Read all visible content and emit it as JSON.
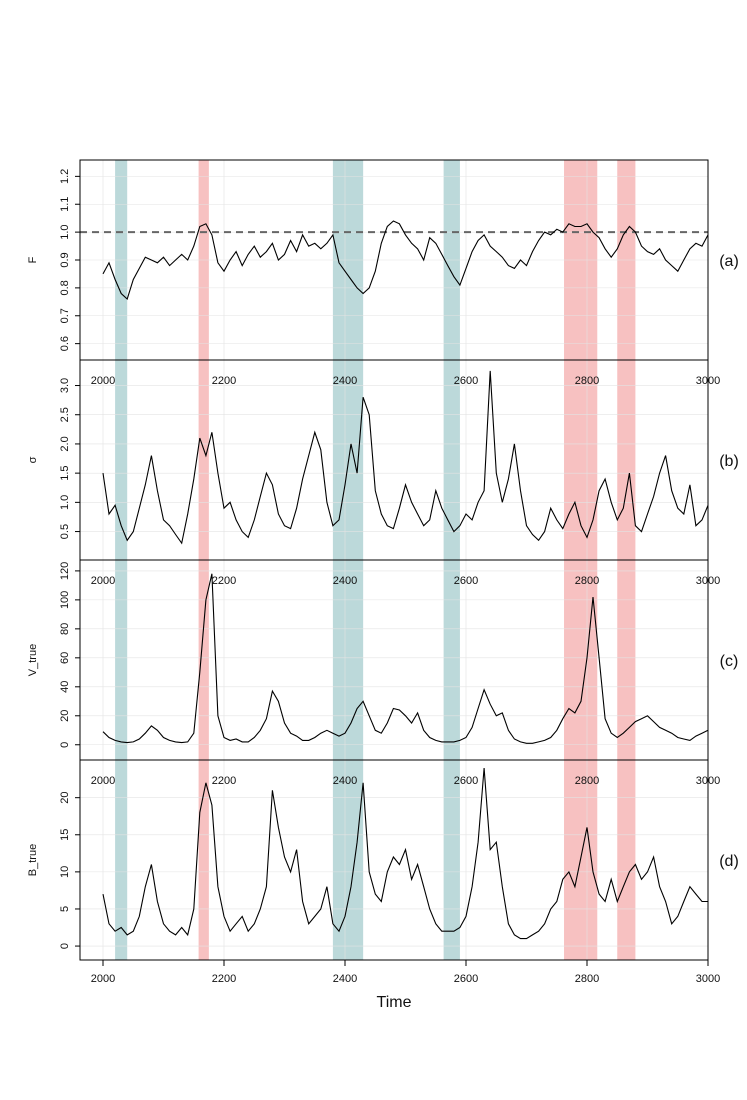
{
  "chart_data": {
    "type": "line",
    "xlabel": "Time",
    "xlim": [
      2000,
      3000
    ],
    "x_ticks": [
      2000,
      2200,
      2400,
      2600,
      2800,
      3000
    ],
    "shaded_regions": [
      {
        "from": 2020,
        "to": 2040,
        "color": "#9fc9cb"
      },
      {
        "from": 2158,
        "to": 2175,
        "color": "#f4a7a7"
      },
      {
        "from": 2380,
        "to": 2430,
        "color": "#9fc9cb"
      },
      {
        "from": 2563,
        "to": 2590,
        "color": "#9fc9cb"
      },
      {
        "from": 2762,
        "to": 2817,
        "color": "#f4a7a7"
      },
      {
        "from": 2850,
        "to": 2880,
        "color": "#f4a7a7"
      }
    ],
    "panels": [
      {
        "tag": "(a)",
        "ylabel": "F",
        "ylim": [
          0.57,
          1.23
        ],
        "yticks": [
          "0.6",
          "0.7",
          "0.8",
          "0.9",
          "1.0",
          "1.1",
          "1.2"
        ],
        "reference_line": 1.0,
        "show_inner_x_ticks": false,
        "x": [
          2000,
          2010,
          2020,
          2030,
          2040,
          2050,
          2060,
          2070,
          2080,
          2090,
          2100,
          2110,
          2120,
          2130,
          2140,
          2150,
          2160,
          2170,
          2180,
          2190,
          2200,
          2210,
          2220,
          2230,
          2240,
          2250,
          2260,
          2270,
          2280,
          2290,
          2300,
          2310,
          2320,
          2330,
          2340,
          2350,
          2360,
          2370,
          2380,
          2390,
          2400,
          2410,
          2420,
          2430,
          2440,
          2450,
          2460,
          2470,
          2480,
          2490,
          2500,
          2510,
          2520,
          2530,
          2540,
          2550,
          2560,
          2570,
          2580,
          2590,
          2600,
          2610,
          2620,
          2630,
          2640,
          2650,
          2660,
          2670,
          2680,
          2690,
          2700,
          2710,
          2720,
          2730,
          2740,
          2750,
          2760,
          2770,
          2780,
          2790,
          2800,
          2810,
          2820,
          2830,
          2840,
          2850,
          2860,
          2870,
          2880,
          2890,
          2900,
          2910,
          2920,
          2930,
          2940,
          2950,
          2960,
          2970,
          2980,
          2990,
          3000
        ],
        "y": [
          0.85,
          0.89,
          0.83,
          0.78,
          0.76,
          0.83,
          0.87,
          0.91,
          0.9,
          0.89,
          0.91,
          0.88,
          0.9,
          0.92,
          0.9,
          0.95,
          1.02,
          1.03,
          0.99,
          0.89,
          0.86,
          0.9,
          0.93,
          0.88,
          0.92,
          0.95,
          0.91,
          0.93,
          0.96,
          0.9,
          0.92,
          0.97,
          0.93,
          0.99,
          0.95,
          0.96,
          0.94,
          0.96,
          0.99,
          0.89,
          0.86,
          0.83,
          0.8,
          0.78,
          0.8,
          0.86,
          0.96,
          1.02,
          1.04,
          1.03,
          0.99,
          0.96,
          0.94,
          0.9,
          0.98,
          0.96,
          0.92,
          0.88,
          0.84,
          0.81,
          0.87,
          0.93,
          0.97,
          0.99,
          0.95,
          0.93,
          0.91,
          0.88,
          0.87,
          0.9,
          0.88,
          0.93,
          0.97,
          1.0,
          0.99,
          1.01,
          1.0,
          1.03,
          1.02,
          1.02,
          1.03,
          1.0,
          0.98,
          0.94,
          0.91,
          0.94,
          0.99,
          1.02,
          1.0,
          0.95,
          0.93,
          0.92,
          0.94,
          0.9,
          0.88,
          0.86,
          0.9,
          0.94,
          0.96,
          0.95,
          0.99
        ]
      },
      {
        "tag": "(b)",
        "ylabel": "σ",
        "ylim": [
          0.15,
          3.3
        ],
        "yticks": [
          "0.5",
          "1.0",
          "1.5",
          "2.0",
          "2.5",
          "3.0"
        ],
        "show_inner_x_ticks": true,
        "x": [
          2000,
          2010,
          2020,
          2030,
          2040,
          2050,
          2060,
          2070,
          2080,
          2090,
          2100,
          2110,
          2120,
          2130,
          2140,
          2150,
          2160,
          2170,
          2180,
          2190,
          2200,
          2210,
          2220,
          2230,
          2240,
          2250,
          2260,
          2270,
          2280,
          2290,
          2300,
          2310,
          2320,
          2330,
          2340,
          2350,
          2360,
          2370,
          2380,
          2390,
          2400,
          2410,
          2420,
          2430,
          2440,
          2450,
          2460,
          2470,
          2480,
          2490,
          2500,
          2510,
          2520,
          2530,
          2540,
          2550,
          2560,
          2570,
          2580,
          2590,
          2600,
          2610,
          2620,
          2630,
          2640,
          2650,
          2660,
          2670,
          2680,
          2690,
          2700,
          2710,
          2720,
          2730,
          2740,
          2750,
          2760,
          2770,
          2780,
          2790,
          2800,
          2810,
          2820,
          2830,
          2840,
          2850,
          2860,
          2870,
          2880,
          2890,
          2900,
          2910,
          2920,
          2930,
          2940,
          2950,
          2960,
          2970,
          2980,
          2990,
          3000
        ],
        "y": [
          1.5,
          0.8,
          0.95,
          0.6,
          0.35,
          0.5,
          0.9,
          1.3,
          1.8,
          1.2,
          0.7,
          0.6,
          0.45,
          0.3,
          0.8,
          1.4,
          2.1,
          1.8,
          2.2,
          1.5,
          0.9,
          1.0,
          0.7,
          0.5,
          0.4,
          0.7,
          1.1,
          1.5,
          1.3,
          0.8,
          0.6,
          0.55,
          0.9,
          1.4,
          1.8,
          2.2,
          1.9,
          1.0,
          0.6,
          0.7,
          1.3,
          2.0,
          1.5,
          2.8,
          2.5,
          1.2,
          0.8,
          0.6,
          0.55,
          0.9,
          1.3,
          1.0,
          0.8,
          0.6,
          0.7,
          1.2,
          0.9,
          0.7,
          0.5,
          0.6,
          0.8,
          0.7,
          1.0,
          1.2,
          3.25,
          1.5,
          1.0,
          1.4,
          2.0,
          1.2,
          0.6,
          0.45,
          0.35,
          0.5,
          0.9,
          0.7,
          0.55,
          0.8,
          1.0,
          0.6,
          0.4,
          0.7,
          1.2,
          1.4,
          1.0,
          0.7,
          0.9,
          1.5,
          0.6,
          0.5,
          0.8,
          1.1,
          1.5,
          1.8,
          1.2,
          0.9,
          0.8,
          1.3,
          0.6,
          0.7,
          0.95
        ]
      },
      {
        "tag": "(c)",
        "ylabel": "V_true",
        "ylim": [
          -5,
          122
        ],
        "yticks": [
          "0",
          "20",
          "40",
          "60",
          "80",
          "100",
          "120"
        ],
        "show_inner_x_ticks": true,
        "x": [
          2000,
          2010,
          2020,
          2030,
          2040,
          2050,
          2060,
          2070,
          2080,
          2090,
          2100,
          2110,
          2120,
          2130,
          2140,
          2150,
          2160,
          2170,
          2180,
          2190,
          2200,
          2210,
          2220,
          2230,
          2240,
          2250,
          2260,
          2270,
          2280,
          2290,
          2300,
          2310,
          2320,
          2330,
          2340,
          2350,
          2360,
          2370,
          2380,
          2390,
          2400,
          2410,
          2420,
          2430,
          2440,
          2450,
          2460,
          2470,
          2480,
          2490,
          2500,
          2510,
          2520,
          2530,
          2540,
          2550,
          2560,
          2570,
          2580,
          2590,
          2600,
          2610,
          2620,
          2630,
          2640,
          2650,
          2660,
          2670,
          2680,
          2690,
          2700,
          2710,
          2720,
          2730,
          2740,
          2750,
          2760,
          2770,
          2780,
          2790,
          2800,
          2810,
          2820,
          2830,
          2840,
          2850,
          2860,
          2870,
          2880,
          2890,
          2900,
          2910,
          2920,
          2930,
          2940,
          2950,
          2960,
          2970,
          2980,
          2990,
          3000
        ],
        "y": [
          9,
          5,
          3,
          2,
          1.5,
          2,
          4,
          8,
          13,
          10,
          5,
          3,
          2,
          1.5,
          2,
          8,
          50,
          100,
          118,
          20,
          5,
          3,
          4,
          2,
          2,
          5,
          10,
          18,
          37,
          30,
          15,
          8,
          6,
          3,
          3,
          5,
          8,
          10,
          8,
          6,
          8,
          15,
          25,
          30,
          20,
          10,
          8,
          15,
          25,
          24,
          20,
          15,
          22,
          10,
          5,
          3,
          2,
          2,
          2,
          3,
          5,
          12,
          25,
          38,
          28,
          20,
          22,
          10,
          4,
          2,
          1,
          1,
          2,
          3,
          5,
          10,
          18,
          25,
          22,
          30,
          60,
          102,
          60,
          18,
          8,
          5,
          8,
          12,
          16,
          18,
          20,
          16,
          12,
          10,
          8,
          5,
          4,
          3,
          6,
          8,
          10
        ]
      },
      {
        "tag": "(d)",
        "ylabel": "B_true",
        "ylim": [
          -0.8,
          24
        ],
        "yticks": [
          "0",
          "5",
          "10",
          "15",
          "20"
        ],
        "show_inner_x_ticks": true,
        "x": [
          2000,
          2010,
          2020,
          2030,
          2040,
          2050,
          2060,
          2070,
          2080,
          2090,
          2100,
          2110,
          2120,
          2130,
          2140,
          2150,
          2160,
          2170,
          2180,
          2190,
          2200,
          2210,
          2220,
          2230,
          2240,
          2250,
          2260,
          2270,
          2280,
          2290,
          2300,
          2310,
          2320,
          2330,
          2340,
          2350,
          2360,
          2370,
          2380,
          2390,
          2400,
          2410,
          2420,
          2430,
          2440,
          2450,
          2460,
          2470,
          2480,
          2490,
          2500,
          2510,
          2520,
          2530,
          2540,
          2550,
          2560,
          2570,
          2580,
          2590,
          2600,
          2610,
          2620,
          2630,
          2640,
          2650,
          2660,
          2670,
          2680,
          2690,
          2700,
          2710,
          2720,
          2730,
          2740,
          2750,
          2760,
          2770,
          2780,
          2790,
          2800,
          2810,
          2820,
          2830,
          2840,
          2850,
          2860,
          2870,
          2880,
          2890,
          2900,
          2910,
          2920,
          2930,
          2940,
          2950,
          2960,
          2970,
          2980,
          2990,
          3000
        ],
        "y": [
          7,
          3,
          2,
          2.5,
          1.5,
          2,
          4,
          8,
          11,
          6,
          3,
          2,
          1.5,
          2.5,
          1.5,
          5,
          18,
          22,
          19,
          8,
          4,
          2,
          3,
          4,
          2,
          3,
          5,
          8,
          21,
          16,
          12,
          10,
          13,
          6,
          3,
          4,
          5,
          8,
          3,
          2,
          4,
          8,
          14,
          22,
          10,
          7,
          6,
          10,
          12,
          11,
          13,
          9,
          11,
          8,
          5,
          3,
          2,
          2,
          2,
          2.5,
          4,
          8,
          14,
          24,
          13,
          14,
          8,
          3,
          1.5,
          1,
          1,
          1.5,
          2,
          3,
          5,
          6,
          9,
          10,
          8,
          12,
          16,
          10,
          7,
          6,
          9,
          6,
          8,
          10,
          11,
          9,
          10,
          12,
          8,
          6,
          3,
          4,
          6,
          8,
          7,
          6,
          6
        ]
      }
    ]
  }
}
